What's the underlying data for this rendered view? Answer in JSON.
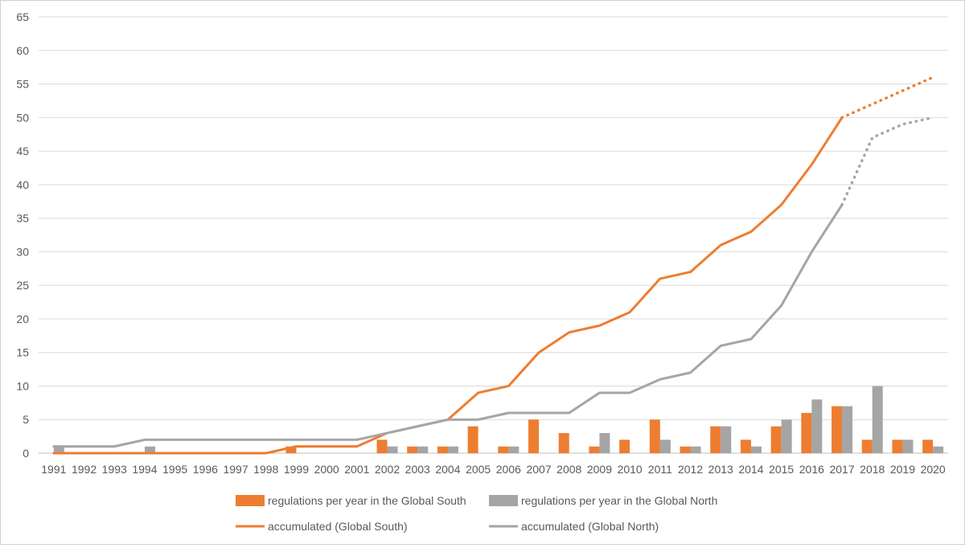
{
  "chart_data": {
    "type": "bar",
    "title": "",
    "xlabel": "",
    "ylabel": "",
    "ylim": [
      0,
      65
    ],
    "yticks": [
      0,
      5,
      10,
      15,
      20,
      25,
      30,
      35,
      40,
      45,
      50,
      55,
      60,
      65
    ],
    "grid": true,
    "legend_position": "bottom",
    "categories": [
      "1991",
      "1992",
      "1993",
      "1994",
      "1995",
      "1996",
      "1997",
      "1998",
      "1999",
      "2000",
      "2001",
      "2002",
      "2003",
      "2004",
      "2005",
      "2006",
      "2007",
      "2008",
      "2009",
      "2010",
      "2011",
      "2012",
      "2013",
      "2014",
      "2015",
      "2016",
      "2017",
      "2018",
      "2019",
      "2020"
    ],
    "series": [
      {
        "name": "regulations per year in the Global South",
        "kind": "bar",
        "color": "#ED7D31",
        "values": [
          0,
          0,
          0,
          0,
          0,
          0,
          0,
          0,
          1,
          0,
          0,
          2,
          1,
          1,
          4,
          1,
          5,
          3,
          1,
          2,
          5,
          1,
          4,
          2,
          4,
          6,
          7,
          2,
          2,
          2
        ]
      },
      {
        "name": "regulations per year in the Global North",
        "kind": "bar",
        "color": "#A5A5A5",
        "values": [
          1,
          0,
          0,
          1,
          0,
          0,
          0,
          0,
          0,
          0,
          0,
          1,
          1,
          1,
          0,
          1,
          0,
          0,
          3,
          0,
          2,
          1,
          4,
          1,
          5,
          8,
          7,
          10,
          2,
          1
        ]
      },
      {
        "name": "accumulated (Global South)",
        "kind": "line",
        "color": "#ED7D31",
        "dotted_from": "2017",
        "values": [
          0,
          0,
          0,
          0,
          0,
          0,
          0,
          0,
          1,
          1,
          1,
          3,
          4,
          5,
          9,
          10,
          15,
          18,
          19,
          21,
          26,
          27,
          31,
          33,
          37,
          43,
          50,
          52,
          54,
          56
        ]
      },
      {
        "name": "accumulated (Global North)",
        "kind": "line",
        "color": "#A5A5A5",
        "dotted_from": "2017",
        "values": [
          1,
          1,
          1,
          2,
          2,
          2,
          2,
          2,
          2,
          2,
          2,
          3,
          4,
          5,
          5,
          6,
          6,
          6,
          9,
          9,
          11,
          12,
          16,
          17,
          22,
          30,
          37,
          47,
          49,
          50
        ]
      }
    ]
  }
}
